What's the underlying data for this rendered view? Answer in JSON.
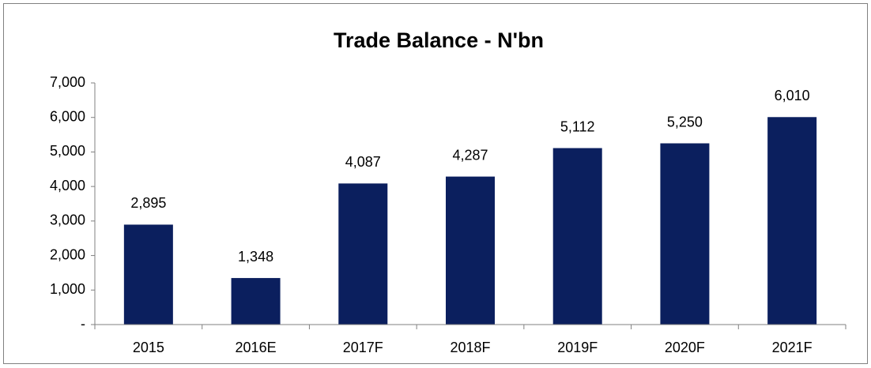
{
  "chart_data": {
    "type": "bar",
    "title": "Trade  Balance - N'bn",
    "categories": [
      "2015",
      "2016E",
      "2017F",
      "2018F",
      "2019F",
      "2020F",
      "2021F"
    ],
    "values": [
      2895,
      1348,
      4087,
      4287,
      5112,
      5250,
      6010
    ],
    "value_labels": [
      "2,895",
      "1,348",
      "4,087",
      "4,287",
      "5,112",
      "5,250",
      "6,010"
    ],
    "color": "#0b1f5e",
    "ylim": [
      0,
      7000
    ],
    "yticks": [
      {
        "value": 0,
        "label": "-"
      },
      {
        "value": 1000,
        "label": "1,000"
      },
      {
        "value": 2000,
        "label": "2,000"
      },
      {
        "value": 3000,
        "label": "3,000"
      },
      {
        "value": 4000,
        "label": "4,000"
      },
      {
        "value": 5000,
        "label": "5,000"
      },
      {
        "value": 6000,
        "label": "6,000"
      },
      {
        "value": 7000,
        "label": "7,000"
      }
    ],
    "grid": false
  }
}
